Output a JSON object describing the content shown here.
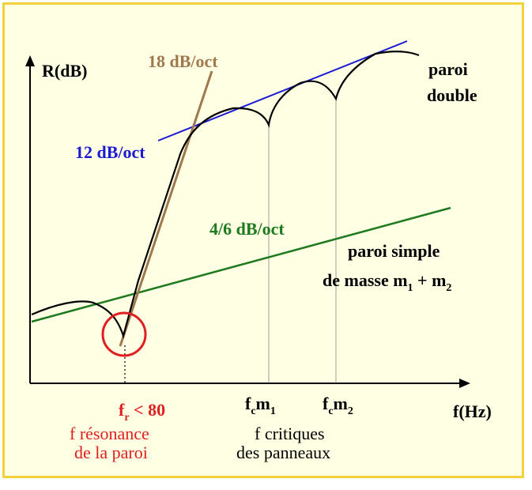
{
  "axes": {
    "y_label": "R(dB)",
    "x_label": "f(Hz)"
  },
  "slopes": {
    "s18": "18 dB/oct",
    "s12": "12 dB/oct",
    "s46": "4/6 dB/oct"
  },
  "curves": {
    "double_line1": "paroi",
    "double_line2": "double",
    "simple_line1": "paroi simple",
    "simple_line2_prefix": "de masse m",
    "simple_line2_sub1": "1",
    "simple_line2_mid": " + m",
    "simple_line2_sub2": "2"
  },
  "resonance": {
    "f": "f",
    "sub": "r",
    "value": " < 80",
    "desc_line1": "f résonance",
    "desc_line2": "de la paroi"
  },
  "critical": {
    "fc1_f": "f",
    "fc1_sub": "c",
    "fc1_m": "m",
    "fc1_msub": "1",
    "fc2_f": "f",
    "fc2_sub": "c",
    "fc2_m": "m",
    "fc2_msub": "2",
    "desc_line1": "f critiques",
    "desc_line2": "des panneaux"
  },
  "colors": {
    "frame_bg": "#ffffe4",
    "frame_border": "#f2d23c",
    "brown": "#a0784e",
    "blue": "#1a1ad2",
    "green": "#1e7a1e",
    "red": "#e02020",
    "black": "#000000"
  }
}
